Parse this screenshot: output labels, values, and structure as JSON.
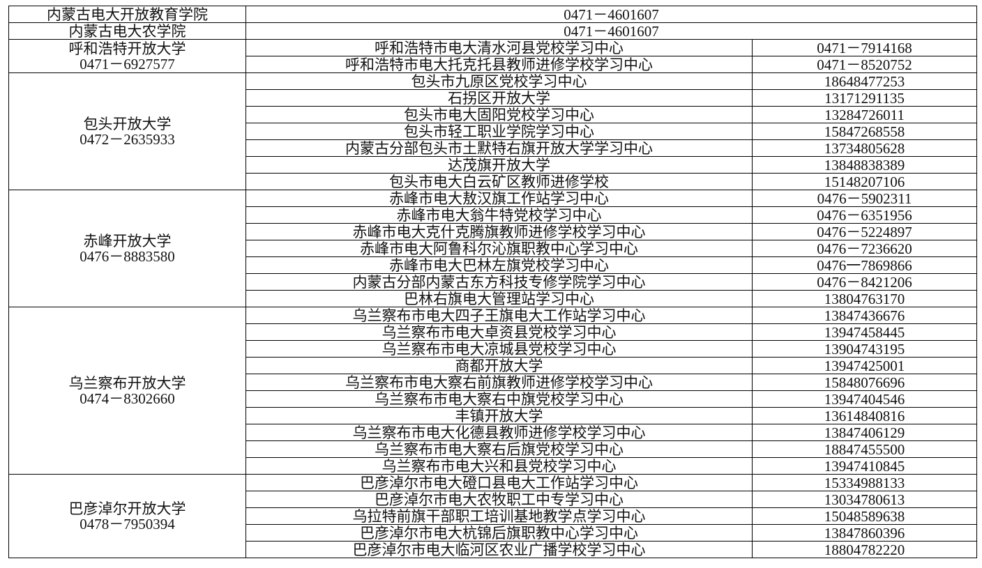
{
  "table": {
    "rows": [
      {
        "name": "内蒙古电大开放教育学院",
        "phone": "0471－4601607"
      },
      {
        "name": "内蒙古电大农学院",
        "phone": "0471－4601607"
      }
    ],
    "groups": [
      {
        "name": "呼和浩特开放大学",
        "phone": "0471－6927577",
        "centers": [
          {
            "name": "呼和浩特市电大清水河县党校学习中心",
            "phone": "0471－7914168"
          },
          {
            "name": "呼和浩特市电大托克托县教师进修学校学习中心",
            "phone": "0471－8520752"
          }
        ]
      },
      {
        "name": "包头开放大学",
        "phone": "0472－2635933",
        "centers": [
          {
            "name": "包头市九原区党校学习中心",
            "phone": "18648477253"
          },
          {
            "name": "石拐区开放大学",
            "phone": "13171291135"
          },
          {
            "name": "包头市电大固阳党校学习中心",
            "phone": "13284726011"
          },
          {
            "name": "包头市轻工职业学院学习中心",
            "phone": "15847268558"
          },
          {
            "name": "内蒙古分部包头市土默特右旗开放大学学习中心",
            "phone": "13734805628"
          },
          {
            "name": "达茂旗开放大学",
            "phone": "13848838389"
          },
          {
            "name": "包头市电大白云矿区教师进修学校",
            "phone": "15148207106"
          }
        ]
      },
      {
        "name": "赤峰开放大学",
        "phone": "0476－8883580",
        "centers": [
          {
            "name": "赤峰市电大敖汉旗工作站学习中心",
            "phone": "0476－5902311"
          },
          {
            "name": "赤峰市电大翁牛特党校学习中心",
            "phone": "0476－6351956"
          },
          {
            "name": "赤峰市电大克什克腾旗教师进修学校学习中心",
            "phone": "0476－5224897"
          },
          {
            "name": "赤峰市电大阿鲁科尔沁旗职教中心学习中心",
            "phone": "0476－7236620"
          },
          {
            "name": "赤峰市电大巴林左旗党校学习中心",
            "phone": "0476一7869866"
          },
          {
            "name": "内蒙古分部内蒙古东方科技专修学院学习中心",
            "phone": "0476－8421206"
          },
          {
            "name": "巴林右旗电大管理站学习中心",
            "phone": "13804763170"
          }
        ]
      },
      {
        "name": "乌兰察布开放大学",
        "phone": "0474－8302660",
        "centers": [
          {
            "name": "乌兰察布市电大四子王旗电大工作站学习中心",
            "phone": "13847436676"
          },
          {
            "name": "乌兰察布市电大卓资县党校学习中心",
            "phone": "13947458445"
          },
          {
            "name": "乌兰察布市电大凉城县党校学习中心",
            "phone": "13904743195"
          },
          {
            "name": "商都开放大学",
            "phone": "13947425001"
          },
          {
            "name": "乌兰察布市电大察右前旗教师进修学校学习中心",
            "phone": "15848076696"
          },
          {
            "name": "乌兰察布市电大察右中旗党校学习中心",
            "phone": "13947404546"
          },
          {
            "name": "丰镇开放大学",
            "phone": "13614840816"
          },
          {
            "name": "乌兰察布市电大化德县教师进修学校学习中心",
            "phone": "13847406129"
          },
          {
            "name": "乌兰察布市电大察右后旗党校学习中心",
            "phone": "18847455500"
          },
          {
            "name": "乌兰察布市电大兴和县党校学习中心",
            "phone": "13947410845"
          }
        ]
      },
      {
        "name": "巴彦淖尔开放大学",
        "phone": "0478－7950394",
        "centers": [
          {
            "name": "巴彦淖尔市电大磴口县电大工作站学习中心",
            "phone": "15334988133"
          },
          {
            "name": "巴彦淖尔市电大农牧职工中专学习中心",
            "phone": "13034780613"
          },
          {
            "name": "乌拉特前旗干部职工培训基地教学点学习中心",
            "phone": "15048589638"
          },
          {
            "name": "巴彦淖尔市电大杭锦后旗职教中心学习中心",
            "phone": "13847860396"
          },
          {
            "name": "巴彦淖尔市电大临河区农业广播学校学习中心",
            "phone": "18804782220"
          }
        ]
      }
    ]
  }
}
